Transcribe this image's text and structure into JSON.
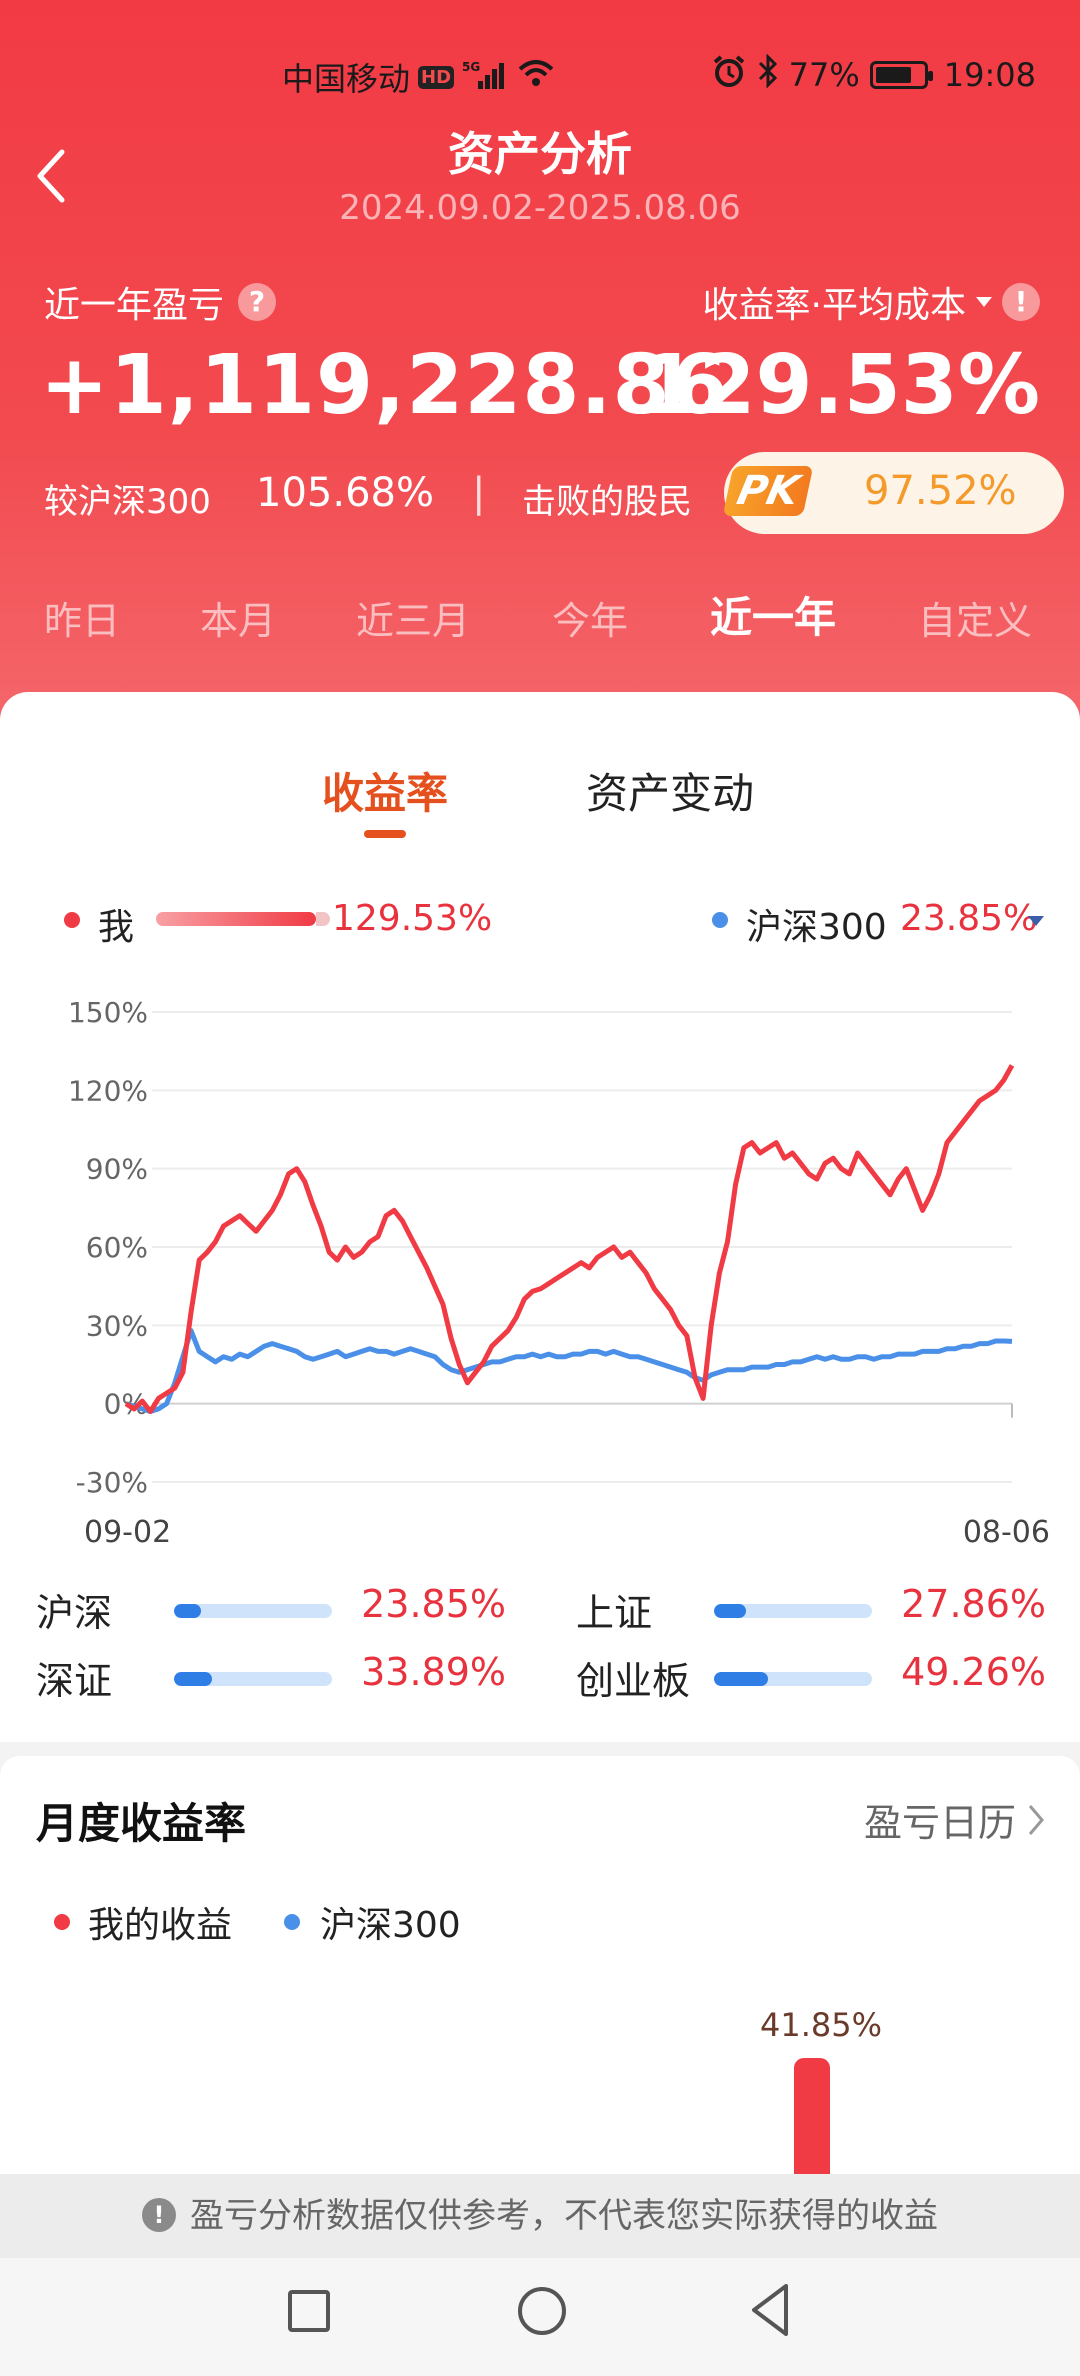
{
  "status_bar": {
    "carrier": "中国移动",
    "hd": "HD",
    "network": "5G",
    "battery": "77%",
    "battery_level": 0.77,
    "time": "19:08"
  },
  "header": {
    "title": "资产分析",
    "date_range": "2024.09.02-2025.08.06"
  },
  "summary": {
    "pnl_label": "近一年盈亏",
    "pnl_value": "+1,119,228.86",
    "rate_label": "收益率·平均成本",
    "rate_value": "129.53%",
    "compare_label": "较沪深300",
    "compare_value": "105.68%",
    "separator": "|",
    "beat_label": "击败的股民",
    "pk_label": "PK",
    "beat_value": "97.52%"
  },
  "period_tabs": [
    {
      "label": "昨日",
      "active": false
    },
    {
      "label": "本月",
      "active": false
    },
    {
      "label": "近三月",
      "active": false
    },
    {
      "label": "今年",
      "active": false
    },
    {
      "label": "近一年",
      "active": true
    },
    {
      "label": "自定义",
      "active": false
    }
  ],
  "chart_tabs": [
    {
      "label": "收益率",
      "active": true
    },
    {
      "label": "资产变动",
      "active": false
    }
  ],
  "legend": {
    "me_label": "我",
    "me_value": "129.53%",
    "index_label": "沪深300",
    "index_value": "23.85%"
  },
  "colors": {
    "me": "#f03a44",
    "index": "#4a90e8",
    "accent": "#e5501f"
  },
  "chart_data": {
    "type": "line",
    "x_start": "09-02",
    "x_end": "08-06",
    "y_ticks": [
      "150%",
      "120%",
      "90%",
      "60%",
      "30%",
      "0%",
      "-30%"
    ],
    "ylim": [
      -30,
      150
    ],
    "grid": true,
    "series": [
      {
        "name": "我",
        "values": [
          0,
          -2,
          1,
          -3,
          2,
          4,
          6,
          12,
          35,
          55,
          58,
          62,
          68,
          70,
          72,
          69,
          66,
          70,
          74,
          80,
          88,
          90,
          85,
          76,
          68,
          58,
          55,
          60,
          56,
          58,
          62,
          64,
          72,
          74,
          70,
          64,
          58,
          52,
          45,
          38,
          25,
          15,
          8,
          12,
          16,
          22,
          25,
          28,
          33,
          40,
          43,
          44,
          46,
          48,
          50,
          52,
          54,
          52,
          56,
          58,
          60,
          56,
          58,
          54,
          50,
          44,
          40,
          36,
          30,
          26,
          10,
          2,
          30,
          50,
          62,
          84,
          98,
          100,
          96,
          98,
          100,
          94,
          96,
          92,
          88,
          86,
          92,
          94,
          90,
          88,
          96,
          92,
          88,
          84,
          80,
          86,
          90,
          82,
          74,
          80,
          88,
          100,
          104,
          108,
          112,
          116,
          118,
          120,
          124,
          129.53
        ]
      },
      {
        "name": "沪深300",
        "values": [
          0,
          -1,
          -2,
          -3,
          -2,
          0,
          8,
          18,
          28,
          20,
          18,
          16,
          18,
          17,
          19,
          18,
          20,
          22,
          23,
          22,
          21,
          20,
          18,
          17,
          18,
          19,
          20,
          18,
          19,
          20,
          21,
          20,
          20,
          19,
          20,
          21,
          20,
          19,
          18,
          15,
          13,
          12,
          13,
          14,
          15,
          16,
          16,
          17,
          18,
          18,
          19,
          18,
          19,
          18,
          18,
          19,
          19,
          20,
          20,
          19,
          20,
          19,
          18,
          18,
          17,
          16,
          15,
          14,
          13,
          12,
          10,
          9,
          11,
          12,
          13,
          13,
          13,
          14,
          14,
          14,
          15,
          15,
          16,
          16,
          17,
          18,
          17,
          18,
          17,
          17,
          18,
          18,
          17,
          18,
          18,
          19,
          19,
          19,
          20,
          20,
          20,
          21,
          21,
          22,
          22,
          23,
          23,
          24,
          24,
          23.85
        ]
      }
    ]
  },
  "indices": [
    {
      "name": "沪深",
      "value": "23.85%",
      "fill": 0.17
    },
    {
      "name": "上证",
      "value": "27.86%",
      "fill": 0.2
    },
    {
      "name": "深证",
      "value": "33.89%",
      "fill": 0.24
    },
    {
      "name": "创业板",
      "value": "49.26%",
      "fill": 0.34
    }
  ],
  "monthly": {
    "title": "月度收益率",
    "calendar_link": "盈亏日历",
    "legend_me": "我的收益",
    "legend_index": "沪深300",
    "top_value": "41.85%"
  },
  "notice": {
    "icon": "!",
    "text": "盈亏分析数据仅供参考，不代表您实际获得的收益"
  }
}
